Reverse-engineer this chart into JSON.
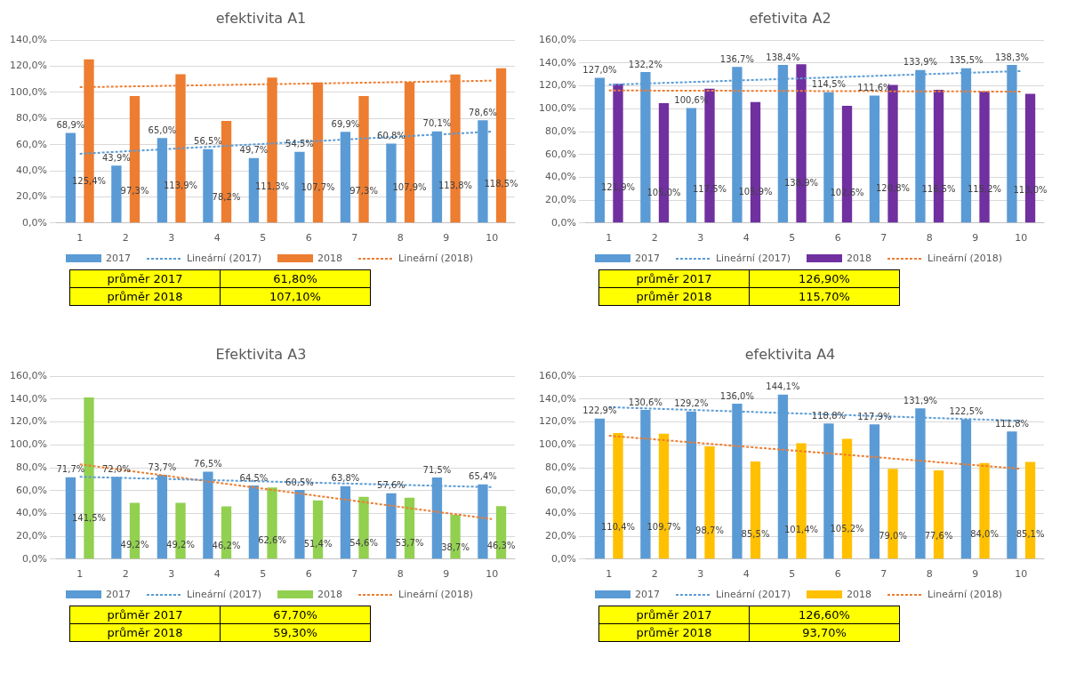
{
  "chart_data": [
    {
      "type": "bar",
      "title": "efektivita A1",
      "categories": [
        "1",
        "2",
        "3",
        "4",
        "5",
        "6",
        "7",
        "8",
        "9",
        "10"
      ],
      "ylim": [
        0,
        140
      ],
      "yticks": [
        {
          "value": 0,
          "label": "0,0%"
        },
        {
          "value": 20,
          "label": "20,0%"
        },
        {
          "value": 40,
          "label": "40,0%"
        },
        {
          "value": 60,
          "label": "60,0%"
        },
        {
          "value": 80,
          "label": "80,0%"
        },
        {
          "value": 100,
          "label": "100,0%"
        },
        {
          "value": 120,
          "label": "120,0%"
        },
        {
          "value": 140,
          "label": "140,0%"
        }
      ],
      "grid": "y",
      "legend": "bottom",
      "series": [
        {
          "name": "2017",
          "color": "#5b9bd5",
          "values": [
            68.9,
            43.9,
            65.0,
            56.5,
            49.7,
            54.5,
            69.9,
            60.8,
            70.1,
            78.6
          ],
          "value_labels": [
            "68,9%",
            "43,9%",
            "65,0%",
            "56,5%",
            "49,7%",
            "54,5%",
            "69,9%",
            "60,8%",
            "70,1%",
            "78,6%"
          ]
        },
        {
          "name": "Lineární (2017)",
          "type": "line",
          "color": "#5b9bd5",
          "line_style": "dotted",
          "marker": "none",
          "x": [
            "1",
            "10"
          ],
          "values": [
            53,
            70
          ]
        },
        {
          "name": "2018",
          "color": "#ed7d31",
          "values": [
            125.4,
            97.3,
            113.9,
            78.2,
            111.3,
            107.7,
            97.3,
            107.9,
            113.8,
            118.5
          ],
          "value_labels": [
            "125,4%",
            "97,3%",
            "113,9%",
            "78,2%",
            "111,3%",
            "107,7%",
            "97,3%",
            "107,9%",
            "113,8%",
            "118,5%"
          ]
        },
        {
          "name": "Lineární (2018)",
          "type": "line",
          "color": "#ed7d31",
          "line_style": "dotted",
          "marker": "none",
          "x": [
            "1",
            "10"
          ],
          "values": [
            104,
            109
          ]
        }
      ],
      "annotations": [
        "průměr 2017",
        "61,80%",
        "průměr 2018",
        "107,10%"
      ]
    },
    {
      "type": "bar",
      "title": "efetivita A2",
      "categories": [
        "1",
        "2",
        "3",
        "4",
        "5",
        "6",
        "7",
        "8",
        "9",
        "10"
      ],
      "ylim": [
        0,
        160
      ],
      "yticks": [
        {
          "value": 0,
          "label": "0,0%"
        },
        {
          "value": 20,
          "label": "20,0%"
        },
        {
          "value": 40,
          "label": "40,0%"
        },
        {
          "value": 60,
          "label": "60,0%"
        },
        {
          "value": 80,
          "label": "80,0%"
        },
        {
          "value": 100,
          "label": "100,0%"
        },
        {
          "value": 120,
          "label": "120,0%"
        },
        {
          "value": 140,
          "label": "140,0%"
        },
        {
          "value": 160,
          "label": "160,0%"
        }
      ],
      "grid": "y",
      "legend": "bottom",
      "series": [
        {
          "name": "2017",
          "color": "#5b9bd5",
          "values": [
            127.0,
            132.2,
            100.6,
            136.7,
            138.4,
            114.5,
            111.6,
            133.9,
            135.5,
            138.3
          ],
          "value_labels": [
            "127,0%",
            "132,2%",
            "100,6%",
            "136,7%",
            "138,4%",
            "114,5%",
            "111,6%",
            "133,9%",
            "135,5%",
            "138,3%"
          ]
        },
        {
          "name": "Lineární (2017)",
          "type": "line",
          "color": "#5b9bd5",
          "line_style": "dotted",
          "marker": "none",
          "x": [
            "1",
            "10"
          ],
          "values": [
            121,
            133
          ]
        },
        {
          "name": "2018",
          "color": "#7030a0",
          "values": [
            121.9,
            105.0,
            117.5,
            105.9,
            138.9,
            102.6,
            120.8,
            116.5,
            115.2,
            113.0
          ],
          "value_labels": [
            "121,9%",
            "105,0%",
            "117,5%",
            "105,9%",
            "138,9%",
            "102,6%",
            "120,8%",
            "116,5%",
            "115,2%",
            "113,0%"
          ]
        },
        {
          "name": "Lineární (2018)",
          "type": "line",
          "color": "#ed7d31",
          "line_style": "dotted",
          "marker": "none",
          "x": [
            "1",
            "10"
          ],
          "values": [
            116,
            115
          ]
        }
      ],
      "annotations": [
        "průměr 2017",
        "126,90%",
        "průměr 2018",
        "115,70%"
      ]
    },
    {
      "type": "bar",
      "title": "Efektivita A3",
      "categories": [
        "1",
        "2",
        "3",
        "4",
        "5",
        "6",
        "7",
        "8",
        "9",
        "10"
      ],
      "ylim": [
        0,
        160
      ],
      "yticks": [
        {
          "value": 0,
          "label": "0,0%"
        },
        {
          "value": 20,
          "label": "20,0%"
        },
        {
          "value": 40,
          "label": "40,0%"
        },
        {
          "value": 60,
          "label": "60,0%"
        },
        {
          "value": 80,
          "label": "80,0%"
        },
        {
          "value": 100,
          "label": "100,0%"
        },
        {
          "value": 120,
          "label": "120,0%"
        },
        {
          "value": 140,
          "label": "140,0%"
        },
        {
          "value": 160,
          "label": "160,0%"
        }
      ],
      "grid": "y",
      "legend": "bottom",
      "series": [
        {
          "name": "2017",
          "color": "#5b9bd5",
          "values": [
            71.7,
            72.0,
            73.7,
            76.5,
            64.5,
            60.5,
            63.8,
            57.6,
            71.5,
            65.4
          ],
          "value_labels": [
            "71,7%",
            "72,0%",
            "73,7%",
            "76,5%",
            "64,5%",
            "60,5%",
            "63,8%",
            "57,6%",
            "71,5%",
            "65,4%"
          ]
        },
        {
          "name": "Lineární (2017)",
          "type": "line",
          "color": "#5b9bd5",
          "line_style": "dotted",
          "marker": "none",
          "x": [
            "1",
            "10"
          ],
          "values": [
            72,
            63
          ]
        },
        {
          "name": "2018",
          "color": "#92d050",
          "values": [
            141.5,
            49.2,
            49.2,
            46.2,
            62.6,
            51.4,
            54.6,
            53.7,
            38.7,
            46.3
          ],
          "value_labels": [
            "141,5%",
            "49,2%",
            "49,2%",
            "46,2%",
            "62,6%",
            "51,4%",
            "54,6%",
            "53,7%",
            "38,7%",
            "46,3%"
          ]
        },
        {
          "name": "Lineární (2018)",
          "type": "line",
          "color": "#ed7d31",
          "line_style": "dotted",
          "marker": "none",
          "x": [
            "1",
            "10"
          ],
          "values": [
            83,
            35
          ]
        }
      ],
      "annotations": [
        "průměr 2017",
        "67,70%",
        "průměr 2018",
        "59,30%"
      ]
    },
    {
      "type": "bar",
      "title": "efektivita A4",
      "categories": [
        "1",
        "2",
        "3",
        "4",
        "5",
        "6",
        "7",
        "8",
        "9",
        "10"
      ],
      "ylim": [
        0,
        160
      ],
      "yticks": [
        {
          "value": 0,
          "label": "0,0%"
        },
        {
          "value": 20,
          "label": "20,0%"
        },
        {
          "value": 40,
          "label": "40,0%"
        },
        {
          "value": 60,
          "label": "60,0%"
        },
        {
          "value": 80,
          "label": "80,0%"
        },
        {
          "value": 100,
          "label": "100,0%"
        },
        {
          "value": 120,
          "label": "120,0%"
        },
        {
          "value": 140,
          "label": "140,0%"
        },
        {
          "value": 160,
          "label": "160,0%"
        }
      ],
      "grid": "y",
      "legend": "bottom",
      "series": [
        {
          "name": "2017",
          "color": "#5b9bd5",
          "values": [
            122.9,
            130.6,
            129.2,
            136.0,
            144.1,
            118.8,
            117.9,
            131.9,
            122.5,
            111.8
          ],
          "value_labels": [
            "122,9%",
            "130,6%",
            "129,2%",
            "136,0%",
            "144,1%",
            "118,8%",
            "117,9%",
            "131,9%",
            "122,5%",
            "111,8%"
          ]
        },
        {
          "name": "Lineární (2017)",
          "type": "line",
          "color": "#5b9bd5",
          "line_style": "dotted",
          "marker": "none",
          "x": [
            "1",
            "10"
          ],
          "values": [
            133,
            121
          ]
        },
        {
          "name": "2018",
          "color": "#ffc000",
          "values": [
            110.4,
            109.7,
            98.7,
            85.5,
            101.4,
            105.2,
            79.0,
            77.6,
            84.0,
            85.1
          ],
          "value_labels": [
            "110,4%",
            "109,7%",
            "98,7%",
            "85,5%",
            "101,4%",
            "105,2%",
            "79,0%",
            "77,6%",
            "84,0%",
            "85,1%"
          ]
        },
        {
          "name": "Lineární (2018)",
          "type": "line",
          "color": "#ed7d31",
          "line_style": "dotted",
          "marker": "none",
          "x": [
            "1",
            "10"
          ],
          "values": [
            108,
            79
          ]
        }
      ],
      "annotations": [
        "průměr 2017",
        "126,60%",
        "průměr 2018",
        "93,70%"
      ]
    }
  ]
}
